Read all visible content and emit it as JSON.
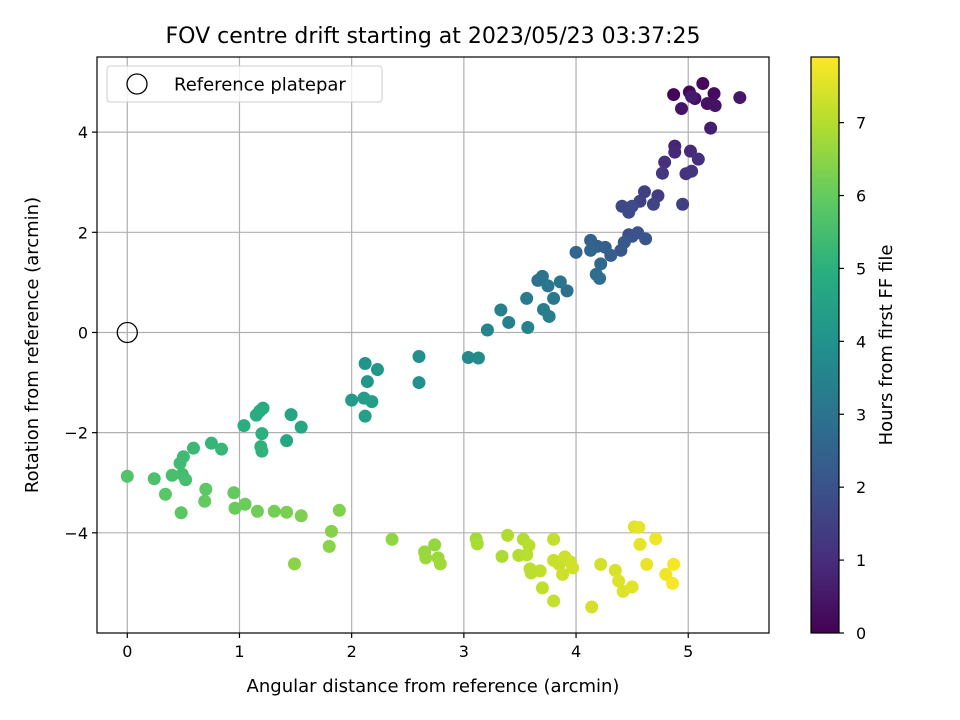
{
  "chart_data": {
    "type": "scatter",
    "title": "FOV centre drift starting at 2023/05/23 03:37:25",
    "xlabel": "Angular distance from reference (arcmin)",
    "ylabel": "Rotation from reference (arcmin)",
    "xlim": [
      -0.27,
      5.72
    ],
    "ylim": [
      -6.0,
      5.5
    ],
    "x_ticks": [
      0,
      1,
      2,
      3,
      4,
      5
    ],
    "y_ticks": [
      -4,
      -2,
      0,
      2,
      4
    ],
    "x_tick_labels": [
      "0",
      "1",
      "2",
      "3",
      "4",
      "5"
    ],
    "y_tick_labels": [
      "−4",
      "−2",
      "0",
      "2",
      "4"
    ],
    "grid": true,
    "legend": {
      "position": "top-left",
      "entries": [
        "Reference platepar"
      ]
    },
    "reference_point": {
      "x": 0,
      "y": 0
    },
    "colorbar": {
      "label": "Hours from first FF file",
      "min": 0,
      "max": 7.9,
      "ticks": [
        0,
        1,
        2,
        3,
        4,
        5,
        6,
        7
      ],
      "tick_labels": [
        "0",
        "1",
        "2",
        "3",
        "4",
        "5",
        "6",
        "7"
      ],
      "colormap": "viridis"
    },
    "series": [
      {
        "points": [
          [
            4.87,
            4.75,
            0.1
          ],
          [
            5.01,
            4.8,
            0.15
          ],
          [
            5.13,
            4.97,
            0.2
          ],
          [
            5.23,
            4.77,
            0.25
          ],
          [
            5.06,
            4.67,
            0.3
          ],
          [
            5.17,
            4.57,
            0.35
          ],
          [
            5.24,
            4.53,
            0.4
          ],
          [
            4.94,
            4.47,
            0.45
          ],
          [
            5.46,
            4.69,
            0.5
          ],
          [
            5.03,
            4.71,
            0.55
          ],
          [
            5.2,
            4.08,
            0.65
          ],
          [
            4.88,
            3.72,
            0.8
          ],
          [
            4.88,
            3.6,
            0.9
          ],
          [
            5.02,
            3.62,
            0.95
          ],
          [
            5.09,
            3.46,
            1.05
          ],
          [
            4.79,
            3.4,
            1.1
          ],
          [
            4.98,
            3.17,
            1.15
          ],
          [
            5.03,
            3.22,
            1.2
          ],
          [
            4.77,
            3.18,
            1.25
          ],
          [
            4.73,
            2.73,
            1.4
          ],
          [
            4.95,
            2.56,
            1.45
          ],
          [
            4.61,
            2.81,
            1.5
          ],
          [
            4.57,
            2.62,
            1.55
          ],
          [
            4.69,
            2.56,
            1.6
          ],
          [
            4.41,
            2.52,
            1.7
          ],
          [
            4.47,
            2.4,
            1.75
          ],
          [
            4.5,
            2.52,
            1.8
          ],
          [
            4.47,
            1.95,
            1.9
          ],
          [
            4.55,
            1.99,
            2.0
          ],
          [
            4.5,
            1.92,
            2.05
          ],
          [
            4.62,
            1.87,
            2.1
          ],
          [
            4.4,
            1.64,
            2.15
          ],
          [
            4.43,
            1.8,
            2.2
          ],
          [
            4.31,
            1.54,
            2.3
          ],
          [
            4.19,
            1.72,
            2.4
          ],
          [
            4.26,
            1.7,
            2.45
          ],
          [
            4.13,
            1.84,
            2.5
          ],
          [
            4.13,
            1.64,
            2.55
          ],
          [
            4.0,
            1.6,
            2.6
          ],
          [
            4.22,
            1.37,
            2.7
          ],
          [
            4.18,
            1.16,
            2.8
          ],
          [
            4.21,
            1.08,
            2.85
          ],
          [
            3.92,
            0.83,
            2.9
          ],
          [
            3.66,
            1.04,
            2.95
          ],
          [
            3.7,
            1.12,
            3.0
          ],
          [
            3.75,
            0.93,
            3.05
          ],
          [
            3.86,
            1.01,
            3.1
          ],
          [
            3.8,
            0.68,
            3.15
          ],
          [
            3.56,
            0.68,
            3.2
          ],
          [
            3.71,
            0.46,
            3.3
          ],
          [
            3.76,
            0.32,
            3.35
          ],
          [
            3.4,
            0.2,
            3.4
          ],
          [
            3.33,
            0.45,
            3.45
          ],
          [
            3.57,
            0.1,
            3.5
          ],
          [
            3.21,
            0.05,
            3.55
          ],
          [
            3.04,
            -0.5,
            3.7
          ],
          [
            3.13,
            -0.51,
            3.75
          ],
          [
            2.6,
            -0.48,
            3.9
          ],
          [
            2.6,
            -1.0,
            4.0
          ],
          [
            2.12,
            -0.62,
            4.1
          ],
          [
            2.23,
            -0.74,
            4.15
          ],
          [
            2.14,
            -0.98,
            4.2
          ],
          [
            2.0,
            -1.35,
            4.3
          ],
          [
            2.11,
            -1.31,
            4.35
          ],
          [
            2.18,
            -1.38,
            4.4
          ],
          [
            2.12,
            -1.67,
            4.45
          ],
          [
            1.46,
            -1.64,
            4.6
          ],
          [
            1.55,
            -1.89,
            4.65
          ],
          [
            1.42,
            -2.16,
            4.7
          ],
          [
            1.21,
            -1.51,
            4.8
          ],
          [
            1.18,
            -1.57,
            4.85
          ],
          [
            1.15,
            -1.65,
            4.9
          ],
          [
            1.04,
            -1.86,
            4.95
          ],
          [
            1.2,
            -2.02,
            5.0
          ],
          [
            1.19,
            -2.28,
            5.05
          ],
          [
            1.2,
            -2.37,
            5.1
          ],
          [
            0.75,
            -2.21,
            5.2
          ],
          [
            0.84,
            -2.33,
            5.25
          ],
          [
            0.59,
            -2.31,
            5.3
          ],
          [
            0.5,
            -2.48,
            5.35
          ],
          [
            0.47,
            -2.61,
            5.4
          ],
          [
            0.49,
            -2.83,
            5.45
          ],
          [
            0.52,
            -2.94,
            5.5
          ],
          [
            0.4,
            -2.85,
            5.55
          ],
          [
            0.24,
            -2.92,
            5.6
          ],
          [
            0.0,
            -2.87,
            5.7
          ],
          [
            0.34,
            -3.23,
            5.8
          ],
          [
            0.48,
            -3.6,
            5.85
          ],
          [
            0.7,
            -3.13,
            5.9
          ],
          [
            0.69,
            -3.37,
            5.95
          ],
          [
            0.95,
            -3.2,
            6.0
          ],
          [
            0.96,
            -3.51,
            6.05
          ],
          [
            1.05,
            -3.43,
            6.1
          ],
          [
            1.16,
            -3.57,
            6.15
          ],
          [
            1.31,
            -3.57,
            6.2
          ],
          [
            1.42,
            -3.59,
            6.25
          ],
          [
            1.55,
            -3.66,
            6.3
          ],
          [
            1.89,
            -3.55,
            6.35
          ],
          [
            1.82,
            -3.97,
            6.4
          ],
          [
            1.8,
            -4.27,
            6.45
          ],
          [
            1.49,
            -4.62,
            6.5
          ],
          [
            2.36,
            -4.13,
            6.55
          ],
          [
            2.74,
            -4.24,
            6.6
          ],
          [
            2.65,
            -4.38,
            6.65
          ],
          [
            2.66,
            -4.5,
            6.7
          ],
          [
            2.77,
            -4.5,
            6.7
          ],
          [
            2.79,
            -4.62,
            6.75
          ],
          [
            3.11,
            -4.12,
            6.8
          ],
          [
            3.12,
            -4.22,
            6.85
          ],
          [
            3.34,
            -4.47,
            6.9
          ],
          [
            3.39,
            -4.05,
            6.95
          ],
          [
            3.49,
            -4.45,
            7.0
          ],
          [
            3.53,
            -4.13,
            7.0
          ],
          [
            3.58,
            -4.25,
            7.05
          ],
          [
            3.56,
            -4.44,
            7.05
          ],
          [
            3.59,
            -4.72,
            7.1
          ],
          [
            3.6,
            -4.8,
            7.1
          ],
          [
            3.68,
            -4.76,
            7.15
          ],
          [
            3.7,
            -5.1,
            7.15
          ],
          [
            3.8,
            -5.36,
            7.2
          ],
          [
            3.8,
            -4.13,
            7.2
          ],
          [
            3.8,
            -4.55,
            7.25
          ],
          [
            3.85,
            -4.63,
            7.25
          ],
          [
            3.88,
            -4.83,
            7.3
          ],
          [
            3.9,
            -4.48,
            7.3
          ],
          [
            3.95,
            -4.58,
            7.35
          ],
          [
            3.97,
            -4.7,
            7.35
          ],
          [
            4.14,
            -5.48,
            7.4
          ],
          [
            4.22,
            -4.63,
            7.4
          ],
          [
            4.35,
            -4.75,
            7.45
          ],
          [
            4.38,
            -4.96,
            7.5
          ],
          [
            4.42,
            -5.17,
            7.5
          ],
          [
            4.5,
            -5.08,
            7.55
          ],
          [
            4.52,
            -3.88,
            7.55
          ],
          [
            4.56,
            -3.89,
            7.6
          ],
          [
            4.57,
            -4.23,
            7.6
          ],
          [
            4.63,
            -4.63,
            7.65
          ],
          [
            4.71,
            -4.12,
            7.7
          ],
          [
            4.8,
            -4.83,
            7.75
          ],
          [
            4.87,
            -4.63,
            7.8
          ],
          [
            4.86,
            -5.01,
            7.85
          ]
        ]
      }
    ]
  }
}
